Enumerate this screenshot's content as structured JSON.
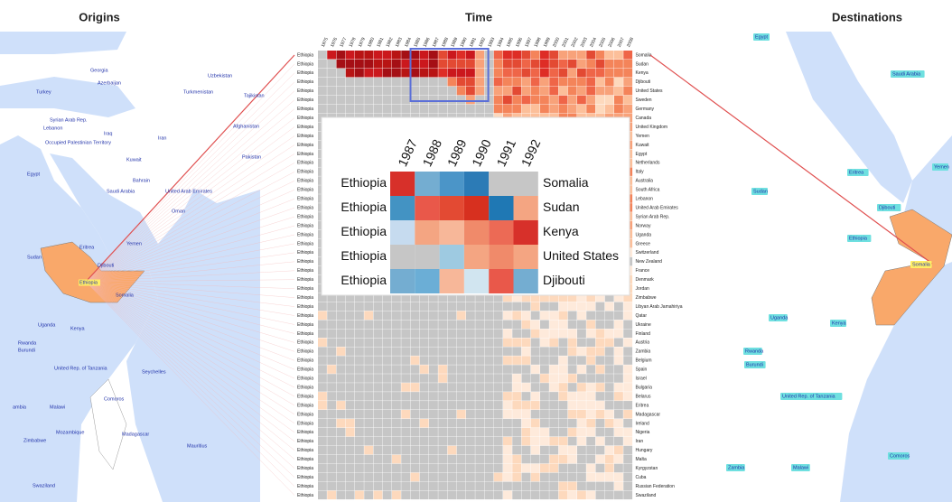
{
  "headers": {
    "origins": "Origins",
    "time": "Time",
    "destinations": "Destinations"
  },
  "years": [
    1975,
    1976,
    1977,
    1978,
    1979,
    1980,
    1981,
    1982,
    1983,
    1984,
    1985,
    1986,
    1987,
    1988,
    1989,
    1990,
    1991,
    1992,
    1993,
    1994,
    1995,
    1996,
    1997,
    1998,
    1999,
    2000,
    2001,
    2002,
    2003,
    2004,
    2005,
    2006,
    2007,
    2008
  ],
  "rows": [
    {
      "origin": "Ethiopia",
      "destination": "Somalia"
    },
    {
      "origin": "Ethiopia",
      "destination": "Sudan"
    },
    {
      "origin": "Ethiopia",
      "destination": "Kenya"
    },
    {
      "origin": "Ethiopia",
      "destination": "Djibouti"
    },
    {
      "origin": "Ethiopia",
      "destination": "United States"
    },
    {
      "origin": "Ethiopia",
      "destination": "Sweden"
    },
    {
      "origin": "Ethiopia",
      "destination": "Germany"
    },
    {
      "origin": "Ethiopia",
      "destination": "Canada"
    },
    {
      "origin": "Ethiopia",
      "destination": "United Kingdom"
    },
    {
      "origin": "Ethiopia",
      "destination": "Yemen"
    },
    {
      "origin": "Ethiopia",
      "destination": "Kuwait"
    },
    {
      "origin": "Ethiopia",
      "destination": "Egypt"
    },
    {
      "origin": "Ethiopia",
      "destination": "Netherlands"
    },
    {
      "origin": "Ethiopia",
      "destination": "Italy"
    },
    {
      "origin": "Ethiopia",
      "destination": "Australia"
    },
    {
      "origin": "Ethiopia",
      "destination": "South Africa"
    },
    {
      "origin": "Ethiopia",
      "destination": "Lebanon"
    },
    {
      "origin": "Ethiopia",
      "destination": "United Arab Emirates"
    },
    {
      "origin": "Ethiopia",
      "destination": "Syrian Arab Rep."
    },
    {
      "origin": "Ethiopia",
      "destination": "Norway"
    },
    {
      "origin": "Ethiopia",
      "destination": "Uganda"
    },
    {
      "origin": "Ethiopia",
      "destination": "Greece"
    },
    {
      "origin": "Ethiopia",
      "destination": "Switzerland"
    },
    {
      "origin": "Ethiopia",
      "destination": "New Zealand"
    },
    {
      "origin": "Ethiopia",
      "destination": "France"
    },
    {
      "origin": "Ethiopia",
      "destination": "Denmark"
    },
    {
      "origin": "Ethiopia",
      "destination": "Jordan"
    },
    {
      "origin": "Ethiopia",
      "destination": "Zimbabwe"
    },
    {
      "origin": "Ethiopia",
      "destination": "Libyan Arab Jamahiriya"
    },
    {
      "origin": "Ethiopia",
      "destination": "Qatar"
    },
    {
      "origin": "Ethiopia",
      "destination": "Ukraine"
    },
    {
      "origin": "Ethiopia",
      "destination": "Finland"
    },
    {
      "origin": "Ethiopia",
      "destination": "Austria"
    },
    {
      "origin": "Ethiopia",
      "destination": "Zambia"
    },
    {
      "origin": "Ethiopia",
      "destination": "Belgium"
    },
    {
      "origin": "Ethiopia",
      "destination": "Spain"
    },
    {
      "origin": "Ethiopia",
      "destination": "Israel"
    },
    {
      "origin": "Ethiopia",
      "destination": "Bulgaria"
    },
    {
      "origin": "Ethiopia",
      "destination": "Belarus"
    },
    {
      "origin": "Ethiopia",
      "destination": "Eritrea"
    },
    {
      "origin": "Ethiopia",
      "destination": "Madagascar"
    },
    {
      "origin": "Ethiopia",
      "destination": "Ireland"
    },
    {
      "origin": "Ethiopia",
      "destination": "Nigeria"
    },
    {
      "origin": "Ethiopia",
      "destination": "Iran"
    },
    {
      "origin": "Ethiopia",
      "destination": "Hungary"
    },
    {
      "origin": "Ethiopia",
      "destination": "Malta"
    },
    {
      "origin": "Ethiopia",
      "destination": "Kyrgyzstan"
    },
    {
      "origin": "Ethiopia",
      "destination": "Cuba"
    },
    {
      "origin": "Ethiopia",
      "destination": "Russian Federation"
    },
    {
      "origin": "Ethiopia",
      "destination": "Swaziland"
    }
  ],
  "inset": {
    "years": [
      1987,
      1988,
      1989,
      1990,
      1991,
      1992
    ],
    "rows": [
      {
        "origin": "Ethiopia",
        "destination": "Somalia"
      },
      {
        "origin": "Ethiopia",
        "destination": "Sudan"
      },
      {
        "origin": "Ethiopia",
        "destination": "Kenya"
      },
      {
        "origin": "Ethiopia",
        "destination": "United States"
      },
      {
        "origin": "Ethiopia",
        "destination": "Djibouti"
      }
    ]
  },
  "origin_map": {
    "labels": [
      "Georgia",
      "Azerbaijan",
      "Uzbekistan",
      "Turkey",
      "Turkmenistan",
      "Tajikistan",
      "Syrian Arab Rep.",
      "Lebanon",
      "Iraq",
      "Iran",
      "Afghanistan",
      "Occupied Palestinian Territory",
      "Kuwait",
      "Pakistan",
      "Egypt",
      "Bahrain",
      "Saudi Arabia",
      "United Arab Emirates",
      "Oman",
      "Yemen",
      "Eritrea",
      "Sudan",
      "Djibouti",
      "Ethiopia",
      "Somalia",
      "Uganda",
      "Kenya",
      "Rwanda",
      "Burundi",
      "United Rep. of Tanzania",
      "Seychelles",
      "Comoros",
      "ambia",
      "Malawi",
      "Mozambique",
      "Madagascar",
      "Zimbabwe",
      "Mauritius",
      "Swaziland"
    ]
  },
  "destination_map": {
    "labels": [
      "Egypt",
      "Saudi Arabia",
      "Eritrea",
      "Yemen",
      "Sudan",
      "Djibouti",
      "Ethiopia",
      "Somalia",
      "Uganda",
      "Kenya",
      "Rwanda",
      "Burundi",
      "United Rep. of Tanzania",
      "Zambia",
      "Malawi",
      "Comoros"
    ]
  }
}
